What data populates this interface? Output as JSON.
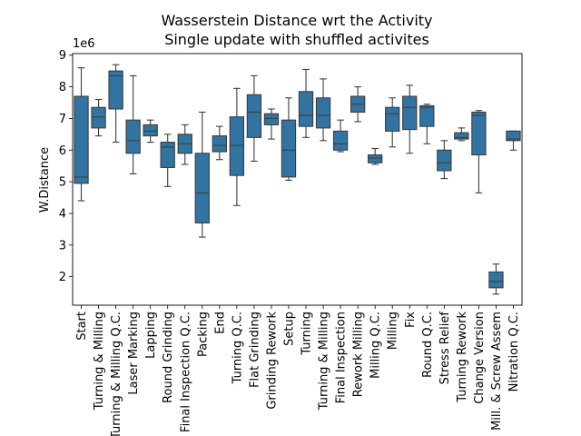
{
  "chart_data": {
    "type": "box",
    "title": "Wasserstein Distance wrt the Activity",
    "subtitle": "Single update with shuffled activites",
    "ylabel": "W.Distance",
    "xlabel": "",
    "y_multiplier": "1e6",
    "ylim": [
      1.1,
      9.05
    ],
    "yticks": [
      2,
      3,
      4,
      5,
      6,
      7,
      8,
      9
    ],
    "box_color": "#3274a1",
    "categories": [
      "Start",
      "Turning & Milling",
      "Turning & Milling Q.C.",
      "Laser Marking",
      "Lapping",
      "Round Grinding",
      "Final Inspection Q.C.",
      "Packing",
      "End",
      "Turning Q.C.",
      "Flat Grinding",
      "Grinding Rework",
      "Setup",
      "Turning",
      "Turning & Milling",
      "Final Inspection",
      "Rework Milling",
      "Milling Q.C.",
      "Milling",
      "Fix",
      "Round Q.C.",
      "Stress Relief",
      "Turning Rework",
      "Change Version",
      "Mill. & Screw Assem",
      "Nitration Q.C."
    ],
    "boxes": [
      {
        "low": 4.4,
        "q1": 4.95,
        "median": 5.15,
        "q3": 7.7,
        "high": 8.6
      },
      {
        "low": 6.45,
        "q1": 6.7,
        "median": 7.05,
        "q3": 7.35,
        "high": 7.6
      },
      {
        "low": 6.25,
        "q1": 7.3,
        "median": 8.35,
        "q3": 8.5,
        "high": 8.7
      },
      {
        "low": 5.25,
        "q1": 5.9,
        "median": 6.3,
        "q3": 6.95,
        "high": 8.35
      },
      {
        "low": 6.25,
        "q1": 6.45,
        "median": 6.6,
        "q3": 6.8,
        "high": 6.95
      },
      {
        "low": 4.85,
        "q1": 5.45,
        "median": 6.1,
        "q3": 6.25,
        "high": 6.5
      },
      {
        "low": 5.55,
        "q1": 5.9,
        "median": 6.2,
        "q3": 6.5,
        "high": 6.8
      },
      {
        "low": 3.25,
        "q1": 3.7,
        "median": 4.65,
        "q3": 5.9,
        "high": 7.2
      },
      {
        "low": 5.7,
        "q1": 5.95,
        "median": 6.15,
        "q3": 6.45,
        "high": 6.75
      },
      {
        "low": 4.25,
        "q1": 5.2,
        "median": 6.15,
        "q3": 7.05,
        "high": 7.95
      },
      {
        "low": 5.65,
        "q1": 6.4,
        "median": 7.2,
        "q3": 7.75,
        "high": 8.35
      },
      {
        "low": 6.35,
        "q1": 6.8,
        "median": 7.0,
        "q3": 7.15,
        "high": 7.3
      },
      {
        "low": 5.05,
        "q1": 5.15,
        "median": 6.0,
        "q3": 6.95,
        "high": 7.65
      },
      {
        "low": 6.4,
        "q1": 6.75,
        "median": 7.1,
        "q3": 7.85,
        "high": 8.55
      },
      {
        "low": 6.3,
        "q1": 6.7,
        "median": 7.1,
        "q3": 7.65,
        "high": 8.25
      },
      {
        "low": 5.95,
        "q1": 6.0,
        "median": 6.2,
        "q3": 6.6,
        "high": 6.95
      },
      {
        "low": 6.9,
        "q1": 7.2,
        "median": 7.45,
        "q3": 7.7,
        "high": 8.0
      },
      {
        "low": 5.55,
        "q1": 5.6,
        "median": 5.75,
        "q3": 5.85,
        "high": 6.05
      },
      {
        "low": 6.1,
        "q1": 6.6,
        "median": 7.15,
        "q3": 7.35,
        "high": 7.65
      },
      {
        "low": 5.9,
        "q1": 6.65,
        "median": 7.35,
        "q3": 7.7,
        "high": 8.05
      },
      {
        "low": 6.2,
        "q1": 6.75,
        "median": 7.35,
        "q3": 7.4,
        "high": 7.45
      },
      {
        "low": 5.1,
        "q1": 5.35,
        "median": 5.6,
        "q3": 6.0,
        "high": 6.3
      },
      {
        "low": 6.3,
        "q1": 6.35,
        "median": 6.4,
        "q3": 6.55,
        "high": 6.7
      },
      {
        "low": 4.65,
        "q1": 5.85,
        "median": 7.1,
        "q3": 7.2,
        "high": 7.25
      },
      {
        "low": 1.45,
        "q1": 1.65,
        "median": 1.85,
        "q3": 2.15,
        "high": 2.4
      },
      {
        "low": 6.0,
        "q1": 6.3,
        "median": 6.35,
        "q3": 6.6,
        "high": 6.6
      }
    ]
  }
}
